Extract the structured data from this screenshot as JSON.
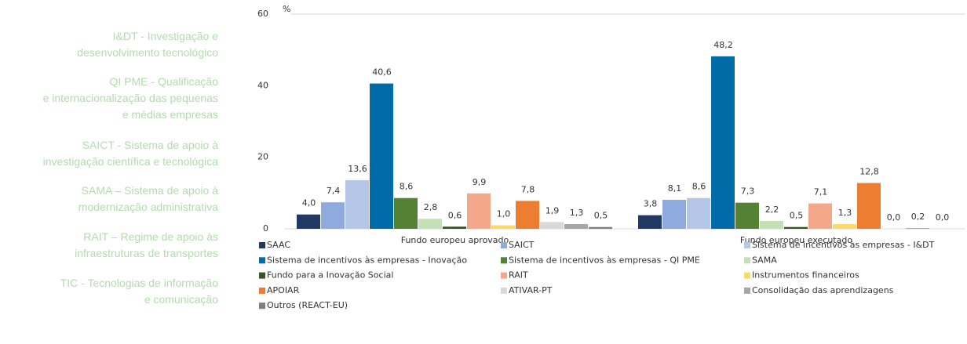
{
  "sidebar": {
    "items": [
      {
        "lines": [
          "I&DT - Investigação e",
          "desenvolvimento tecnológico"
        ]
      },
      {
        "lines": [
          "QI PME - Qualificação",
          "e internacionalização das pequenas",
          "e médias empresas"
        ]
      },
      {
        "lines": [
          "SAICT - Sistema de apoio à",
          "investigação científica e tecnológica"
        ]
      },
      {
        "lines": [
          "SAMA – Sistema de apoio à",
          "modernização administrativa"
        ]
      },
      {
        "lines": [
          "RAIT – Regime de apoio às",
          "infraestruturas de transportes"
        ]
      },
      {
        "lines": [
          "TIC - Tecnologias de informação",
          "e comunicação"
        ]
      }
    ]
  },
  "chart_data": {
    "type": "bar",
    "y_unit": "%",
    "categories": [
      "Fundo europeu aprovado",
      "Fundo europeu executado"
    ],
    "ylim": [
      0,
      60
    ],
    "yticks": [
      0,
      20,
      40,
      60
    ],
    "grid": false,
    "legend": "bottom",
    "series": [
      {
        "name": "SAAC",
        "color": "#203864",
        "values": [
          4.0,
          3.8
        ],
        "value_labels": [
          "4,0",
          "3,8"
        ]
      },
      {
        "name": "SAICT",
        "color": "#8faadc",
        "values": [
          7.4,
          8.1
        ],
        "value_labels": [
          "7,4",
          "8,1"
        ]
      },
      {
        "name": "Sistema de incentivos às empresas - I&DT",
        "color": "#b4c7e7",
        "values": [
          13.6,
          8.6
        ],
        "value_labels": [
          "13,6",
          "8,6"
        ]
      },
      {
        "name": "Sistema de incentivos às empresas - Inovação",
        "color": "#006ba6",
        "values": [
          40.6,
          48.2
        ],
        "value_labels": [
          "40,6",
          "48,2"
        ]
      },
      {
        "name": "Sistema de incentivos às empresas - QI PME",
        "color": "#548235",
        "values": [
          8.6,
          7.3
        ],
        "value_labels": [
          "8,6",
          "7,3"
        ]
      },
      {
        "name": "SAMA",
        "color": "#c5e0b4",
        "values": [
          2.8,
          2.2
        ],
        "value_labels": [
          "2,8",
          "2,2"
        ]
      },
      {
        "name": "Fundo para a Inovação Social",
        "color": "#375623",
        "values": [
          0.6,
          0.5
        ],
        "value_labels": [
          "0,6",
          "0,5"
        ]
      },
      {
        "name": "RAIT",
        "color": "#f4a88a",
        "values": [
          9.9,
          7.1
        ],
        "value_labels": [
          "9,9",
          "7,1"
        ]
      },
      {
        "name": "Instrumentos financeiros",
        "color": "#ffd966",
        "values": [
          1.0,
          1.3
        ],
        "value_labels": [
          "1,0",
          "1,3"
        ]
      },
      {
        "name": "APOIAR",
        "color": "#ed7d31",
        "values": [
          7.8,
          12.8
        ],
        "value_labels": [
          "7,8",
          "12,8"
        ]
      },
      {
        "name": "ATIVAR-PT",
        "color": "#d9d9d9",
        "values": [
          1.9,
          0.0
        ],
        "value_labels": [
          "1,9",
          "0,0"
        ]
      },
      {
        "name": "Consolidação das aprendizagens",
        "color": "#a6a6a6",
        "values": [
          1.3,
          0.2
        ],
        "value_labels": [
          "1,3",
          "0,2"
        ]
      },
      {
        "name": "Outros (REACT-EU)",
        "color": "#7f7f7f",
        "values": [
          0.5,
          0.0
        ],
        "value_labels": [
          "0,5",
          "0,0"
        ]
      }
    ]
  }
}
